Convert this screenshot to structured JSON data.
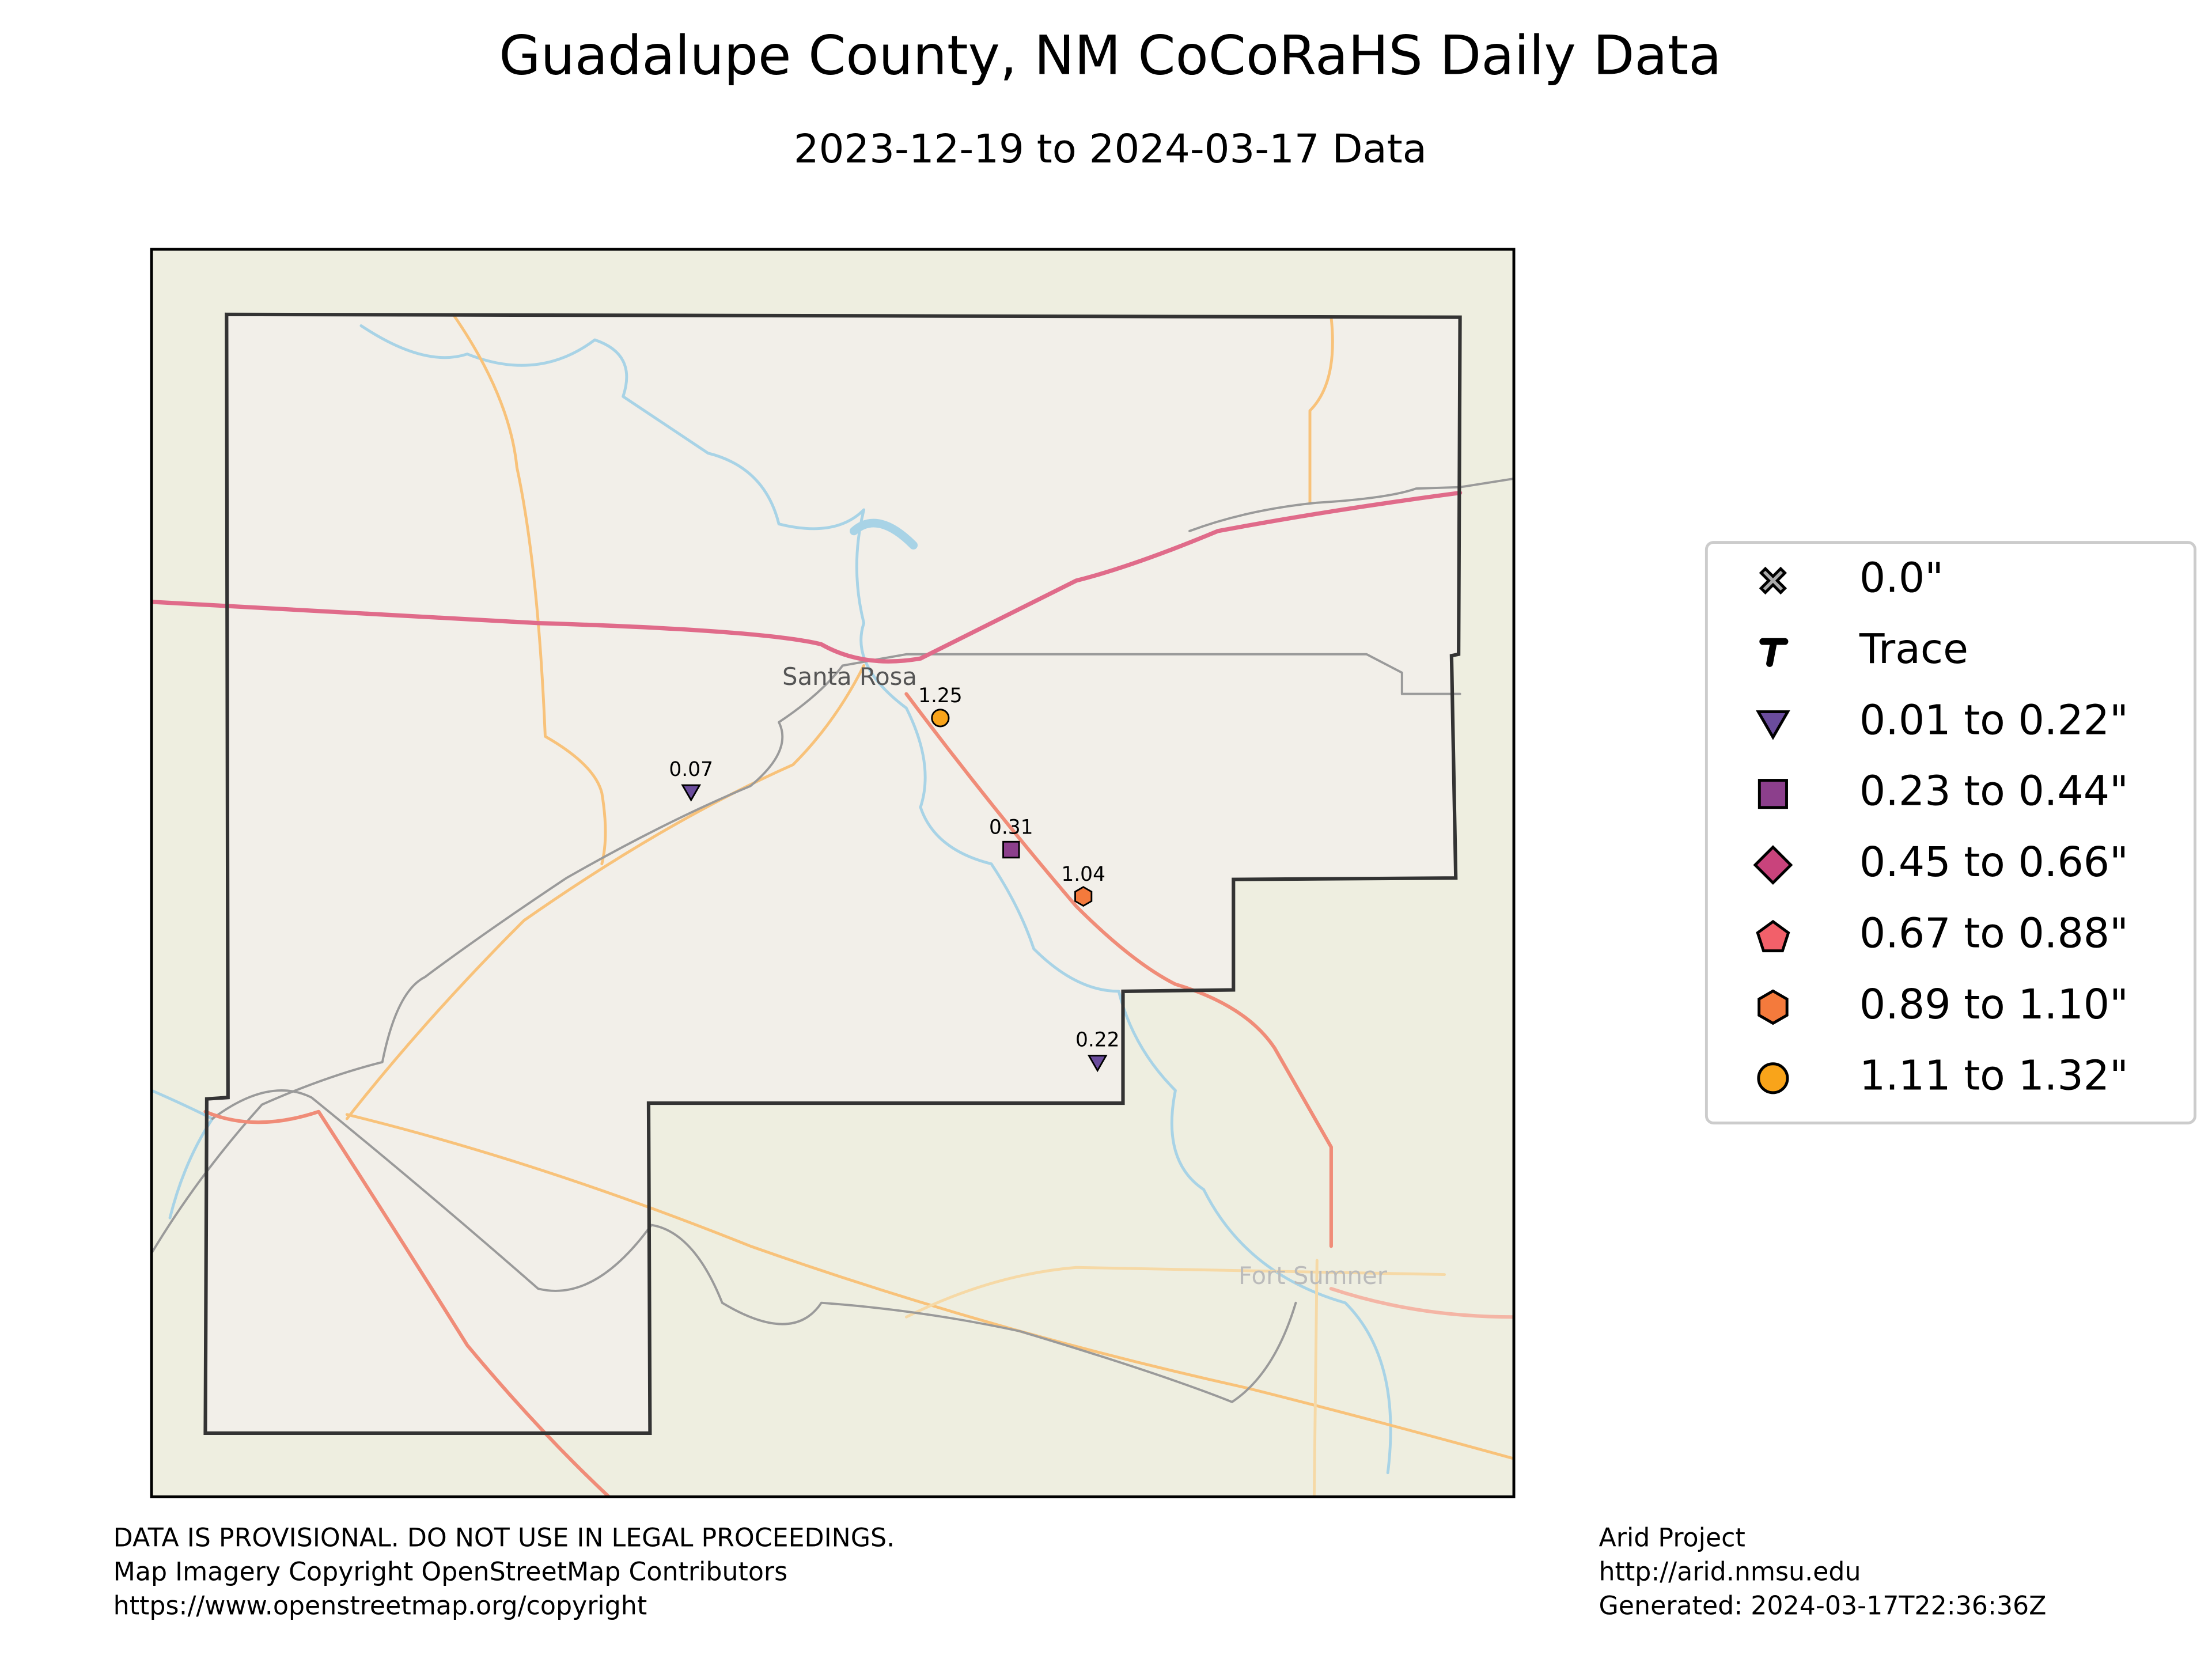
{
  "header": {
    "title": "Guadalupe County, NM CoCoRaHS Daily Data",
    "subtitle": "2023-12-19 to 2024-03-17 Data"
  },
  "map": {
    "places": [
      "Santa Rosa",
      "Fort Sumner"
    ],
    "stations": [
      {
        "value": 1.25
      },
      {
        "value": 0.07
      },
      {
        "value": 0.31
      },
      {
        "value": 1.04
      },
      {
        "value": 0.22
      }
    ]
  },
  "legend": {
    "items": [
      "0.0\"",
      "Trace",
      "0.01 to 0.22\"",
      "0.23 to 0.44\"",
      "0.45 to 0.66\"",
      "0.67 to 0.88\"",
      "0.89 to 1.10\"",
      "1.11 to 1.32\""
    ]
  },
  "footer": {
    "left": [
      "DATA IS PROVISIONAL. DO NOT USE IN LEGAL PROCEEDINGS.",
      "Map Imagery Copyright OpenStreetMap Contributors",
      "https://www.openstreetmap.org/copyright"
    ],
    "right": [
      "Arid Project",
      "http://arid.nmsu.edu",
      "Generated: 2024-03-17T22:36:36Z"
    ]
  }
}
